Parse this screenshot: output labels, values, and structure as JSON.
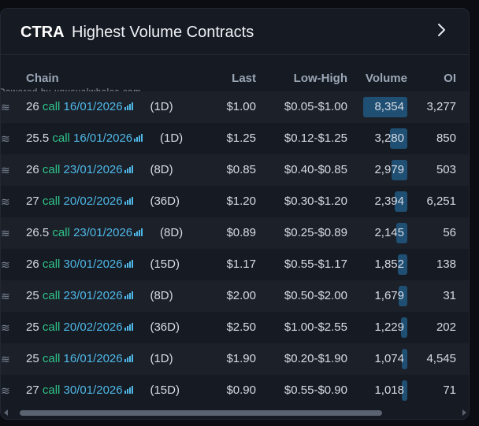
{
  "header": {
    "ticker": "CTRA",
    "title": "Highest Volume Contracts"
  },
  "columns": {
    "chain": "Chain",
    "last": "Last",
    "low_high": "Low-High",
    "volume": "Volume",
    "oi": "OI"
  },
  "powered_by": "Powered by unusualwhales.com",
  "colors": {
    "call": "#2fc48a",
    "date": "#4fb8e8",
    "volume_bar": "#1f4f73"
  },
  "max_volume": 8354,
  "rows": [
    {
      "wave": "≋",
      "strike": "26",
      "type": "call",
      "date": "16/01/2026",
      "dte": "(1D)",
      "last": "$1.00",
      "low_high": "$0.05-$1.00",
      "volume": "8,354",
      "volume_value": 8354,
      "oi": "3,277"
    },
    {
      "wave": "≋",
      "strike": "25.5",
      "type": "call",
      "date": "16/01/2026",
      "dte": "(1D)",
      "last": "$1.25",
      "low_high": "$0.12-$1.25",
      "volume": "3,280",
      "volume_value": 3280,
      "oi": "850"
    },
    {
      "wave": "≋",
      "strike": "26",
      "type": "call",
      "date": "23/01/2026",
      "dte": "(8D)",
      "last": "$0.85",
      "low_high": "$0.40-$0.85",
      "volume": "2,979",
      "volume_value": 2979,
      "oi": "503"
    },
    {
      "wave": "≋",
      "strike": "27",
      "type": "call",
      "date": "20/02/2026",
      "dte": "(36D)",
      "last": "$1.20",
      "low_high": "$0.30-$1.20",
      "volume": "2,394",
      "volume_value": 2394,
      "oi": "6,251"
    },
    {
      "wave": "≋",
      "strike": "26.5",
      "type": "call",
      "date": "23/01/2026",
      "dte": "(8D)",
      "last": "$0.89",
      "low_high": "$0.25-$0.89",
      "volume": "2,145",
      "volume_value": 2145,
      "oi": "56"
    },
    {
      "wave": "≋",
      "strike": "26",
      "type": "call",
      "date": "30/01/2026",
      "dte": "(15D)",
      "last": "$1.17",
      "low_high": "$0.55-$1.17",
      "volume": "1,852",
      "volume_value": 1852,
      "oi": "138"
    },
    {
      "wave": "≋",
      "strike": "25",
      "type": "call",
      "date": "23/01/2026",
      "dte": "(8D)",
      "last": "$2.00",
      "low_high": "$0.50-$2.00",
      "volume": "1,679",
      "volume_value": 1679,
      "oi": "31"
    },
    {
      "wave": "≋",
      "strike": "25",
      "type": "call",
      "date": "20/02/2026",
      "dte": "(36D)",
      "last": "$2.50",
      "low_high": "$1.00-$2.55",
      "volume": "1,229",
      "volume_value": 1229,
      "oi": "202"
    },
    {
      "wave": "≋",
      "strike": "25",
      "type": "call",
      "date": "16/01/2026",
      "dte": "(1D)",
      "last": "$1.90",
      "low_high": "$0.20-$1.90",
      "volume": "1,074",
      "volume_value": 1074,
      "oi": "4,545"
    },
    {
      "wave": "≋",
      "strike": "27",
      "type": "call",
      "date": "30/01/2026",
      "dte": "(15D)",
      "last": "$0.90",
      "low_high": "$0.55-$0.90",
      "volume": "1,018",
      "volume_value": 1018,
      "oi": "71"
    }
  ]
}
